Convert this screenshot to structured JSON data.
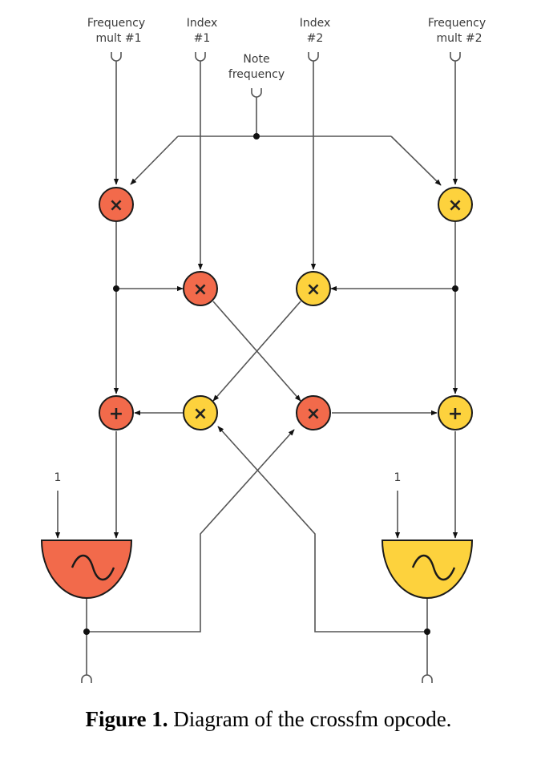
{
  "labels": {
    "freq_mult_1": [
      "Frequency",
      "mult #1"
    ],
    "index_1": [
      "Index",
      "#1"
    ],
    "note_frequency": [
      "Note",
      "frequency"
    ],
    "index_2": [
      "Index",
      "#2"
    ],
    "freq_mult_2": [
      "Frequency",
      "mult #2"
    ],
    "one_left": "1",
    "one_right": "1"
  },
  "symbols": {
    "multiply": "×",
    "add": "+",
    "tilde": "~"
  },
  "colors": {
    "red": "#f26a4b",
    "yellow": "#fdd23d"
  },
  "caption": {
    "prefix": "Figure 1.",
    "text": " Diagram of the crossfm opcode."
  }
}
